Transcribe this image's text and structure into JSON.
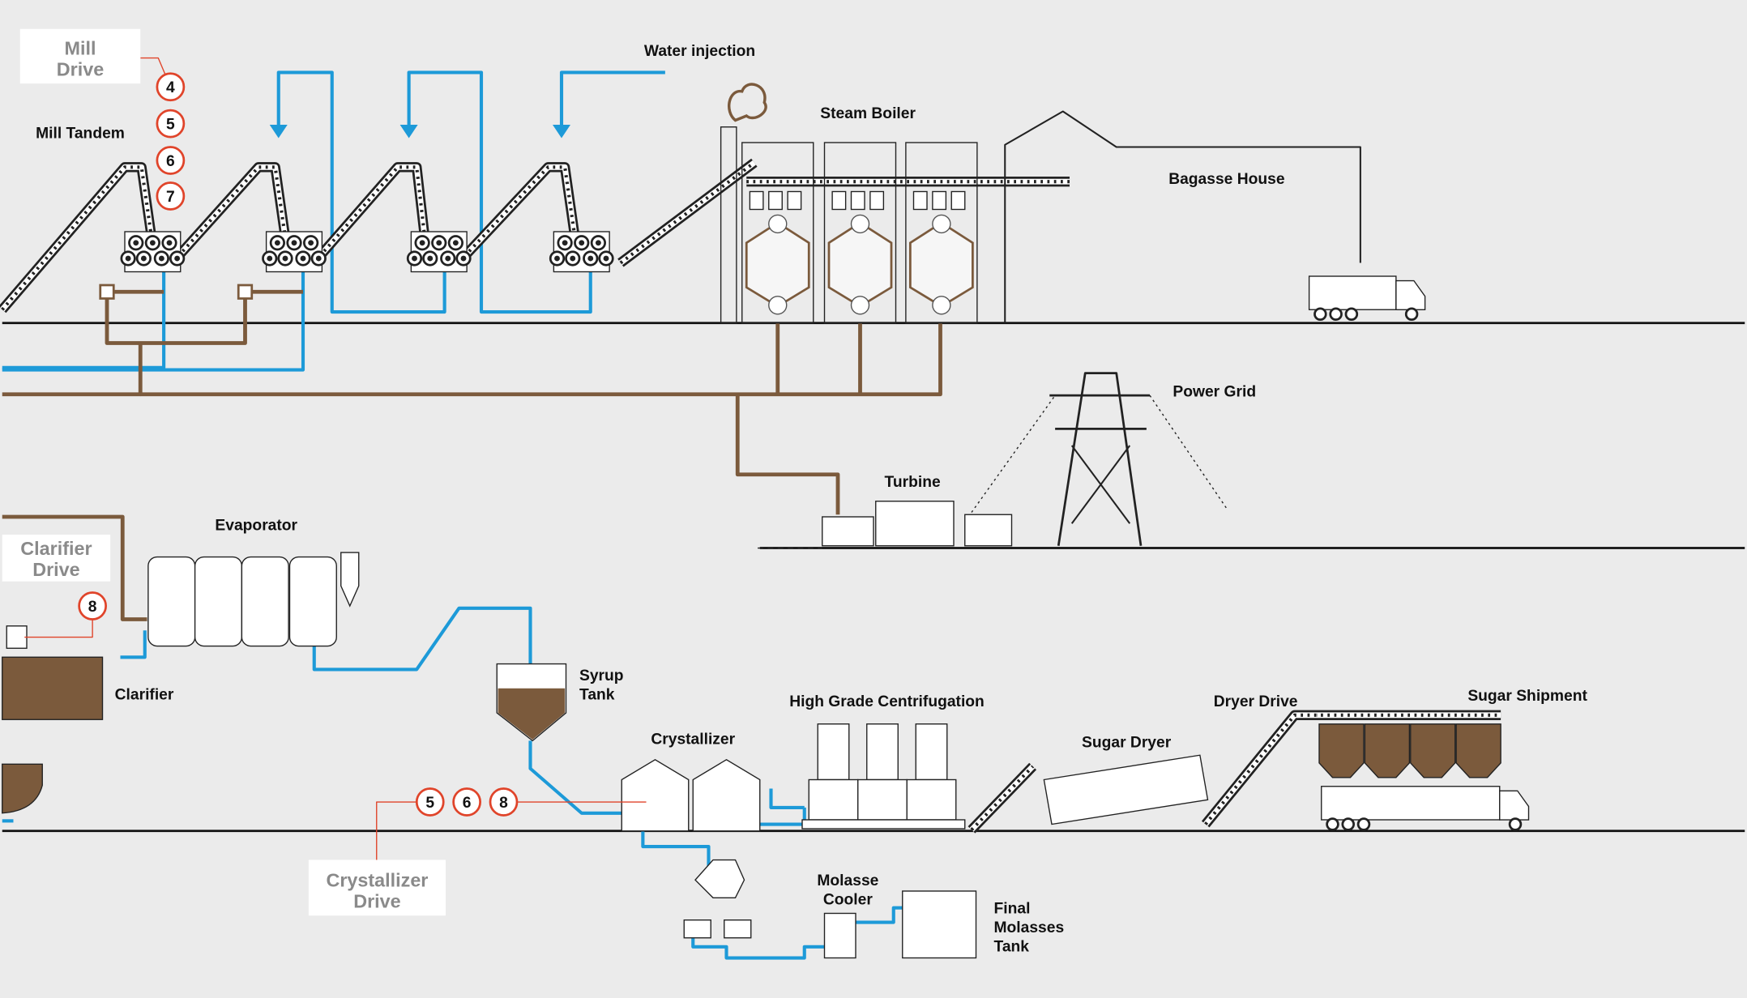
{
  "drives": [
    {
      "lines": [
        "Mill",
        "Drive"
      ],
      "numbers": [
        4,
        5,
        6,
        7
      ]
    },
    {
      "lines": [
        "Clarifier",
        "Drive"
      ],
      "numbers": [
        8
      ]
    },
    {
      "lines": [
        "Crystallizer",
        "Drive"
      ],
      "numbers": [
        5,
        6,
        8
      ]
    }
  ],
  "labels": [
    {
      "lines": [
        "Water injection"
      ]
    },
    {
      "lines": [
        "Steam Boiler"
      ]
    },
    {
      "lines": [
        "Bagasse House"
      ]
    },
    {
      "lines": [
        "Mill Tandem"
      ]
    },
    {
      "lines": [
        "Power Grid"
      ]
    },
    {
      "lines": [
        "Turbine"
      ]
    },
    {
      "lines": [
        "Evaporator"
      ]
    },
    {
      "lines": [
        "Clarifier"
      ]
    },
    {
      "lines": [
        "Syrup",
        "Tank"
      ]
    },
    {
      "lines": [
        "Crystallizer"
      ]
    },
    {
      "lines": [
        "High Grade Centrifugation"
      ]
    },
    {
      "lines": [
        "Dryer Drive"
      ]
    },
    {
      "lines": [
        "Sugar Shipment"
      ]
    },
    {
      "lines": [
        "Sugar Dryer"
      ]
    },
    {
      "lines": [
        "Molasse",
        "Cooler"
      ]
    },
    {
      "lines": [
        "Final",
        "Molasses",
        "Tank"
      ]
    }
  ]
}
